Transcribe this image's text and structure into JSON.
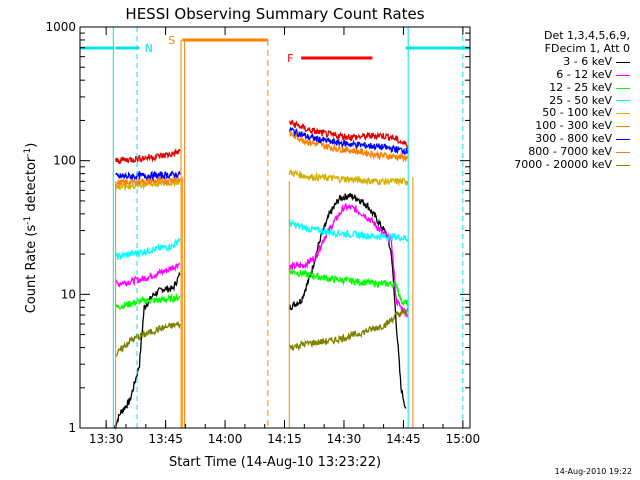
{
  "chart_data": {
    "type": "line",
    "title": "HESSI Observing Summary Count Rates",
    "xlabel": "Start Time (14-Aug-10 13:23:22)",
    "ylabel_parts": [
      "Count Rate (s",
      "-1",
      " detector",
      "-1",
      ")"
    ],
    "y_scale": "log",
    "ylim": [
      1,
      1000
    ],
    "y_ticks": [
      {
        "v": 1,
        "label": "1"
      },
      {
        "v": 10,
        "label": "10"
      },
      {
        "v": 100,
        "label": "100"
      },
      {
        "v": 1000,
        "label": "1000"
      }
    ],
    "xlim": [
      13.39,
      15.03
    ],
    "x_ticks": [
      {
        "v": 13.5,
        "label": "13:30"
      },
      {
        "v": 13.75,
        "label": "13:45"
      },
      {
        "v": 14.0,
        "label": "14:00"
      },
      {
        "v": 14.25,
        "label": "14:15"
      },
      {
        "v": 14.5,
        "label": "14:30"
      },
      {
        "v": 14.75,
        "label": "14:45"
      },
      {
        "v": 15.0,
        "label": "15:00"
      }
    ],
    "legend_header": [
      "Det 1,3,4,5,6,9,",
      "FDecim 1, Att 0"
    ],
    "series": [
      {
        "name": "3 - 6 keV",
        "color": "#000000",
        "segments": [
          [
            [
              13.535,
              1
            ],
            [
              13.56,
              1.3
            ],
            [
              13.6,
              1.6
            ],
            [
              13.64,
              3
            ],
            [
              13.66,
              8
            ],
            [
              13.7,
              10
            ],
            [
              13.74,
              11
            ],
            [
              13.78,
              11
            ],
            [
              13.81,
              14
            ]
          ],
          [
            [
              14.27,
              8
            ],
            [
              14.32,
              9
            ],
            [
              14.36,
              14
            ],
            [
              14.4,
              26
            ],
            [
              14.44,
              40
            ],
            [
              14.48,
              52
            ],
            [
              14.52,
              55
            ],
            [
              14.56,
              52
            ],
            [
              14.6,
              46
            ],
            [
              14.64,
              36
            ],
            [
              14.68,
              28
            ],
            [
              14.7,
              20
            ],
            [
              14.72,
              6
            ],
            [
              14.74,
              2
            ],
            [
              14.76,
              1.4
            ]
          ]
        ]
      },
      {
        "name": "6 - 12 keV",
        "color": "#ff00ff",
        "segments": [
          [
            [
              13.54,
              12
            ],
            [
              13.6,
              12.5
            ],
            [
              13.65,
              13
            ],
            [
              13.7,
              14
            ],
            [
              13.75,
              15
            ],
            [
              13.81,
              17
            ]
          ],
          [
            [
              14.27,
              16
            ],
            [
              14.33,
              16.5
            ],
            [
              14.38,
              19
            ],
            [
              14.42,
              27
            ],
            [
              14.46,
              35
            ],
            [
              14.5,
              45
            ],
            [
              14.54,
              44
            ],
            [
              14.58,
              40
            ],
            [
              14.62,
              35
            ],
            [
              14.66,
              29
            ],
            [
              14.7,
              25
            ],
            [
              14.72,
              9
            ],
            [
              14.74,
              8
            ],
            [
              14.77,
              7
            ]
          ]
        ]
      },
      {
        "name": "12 - 25 keV",
        "color": "#00ff00",
        "segments": [
          [
            [
              13.54,
              8
            ],
            [
              13.6,
              8.5
            ],
            [
              13.66,
              9
            ],
            [
              13.72,
              9
            ],
            [
              13.81,
              9.5
            ]
          ],
          [
            [
              14.27,
              15
            ],
            [
              14.35,
              14
            ],
            [
              14.45,
              13
            ],
            [
              14.55,
              12.5
            ],
            [
              14.65,
              12
            ],
            [
              14.72,
              12
            ],
            [
              14.74,
              9
            ],
            [
              14.77,
              8.5
            ]
          ]
        ]
      },
      {
        "name": "25 - 50 keV",
        "color": "#00ffff",
        "segments": [
          [
            [
              13.54,
              19
            ],
            [
              13.6,
              20
            ],
            [
              13.66,
              21
            ],
            [
              13.72,
              22
            ],
            [
              13.78,
              23
            ],
            [
              13.81,
              26
            ]
          ],
          [
            [
              14.27,
              34
            ],
            [
              14.35,
              31
            ],
            [
              14.45,
              29
            ],
            [
              14.55,
              28
            ],
            [
              14.65,
              27
            ],
            [
              14.72,
              27
            ],
            [
              14.77,
              26
            ]
          ]
        ]
      },
      {
        "name": "50 - 100 keV",
        "color": "#d4b000",
        "segments": [
          [
            [
              13.54,
              63
            ],
            [
              13.65,
              66
            ],
            [
              13.75,
              68
            ],
            [
              13.81,
              70
            ]
          ],
          [
            [
              14.27,
              82
            ],
            [
              14.35,
              76
            ],
            [
              14.45,
              74
            ],
            [
              14.55,
              72
            ],
            [
              14.65,
              70
            ],
            [
              14.77,
              70
            ]
          ]
        ]
      },
      {
        "name": "100 - 300 keV",
        "color": "#ff8000",
        "segments": [
          [
            [
              13.54,
              68
            ],
            [
              13.65,
              70
            ],
            [
              13.75,
              71
            ],
            [
              13.81,
              73
            ]
          ],
          [
            [
              14.27,
              160
            ],
            [
              14.35,
              138
            ],
            [
              14.45,
              125
            ],
            [
              14.55,
              118
            ],
            [
              14.65,
              110
            ],
            [
              14.77,
              105
            ]
          ]
        ]
      },
      {
        "name": "300 - 800 keV",
        "color": "#0000ff",
        "segments": [
          [
            [
              13.54,
              76
            ],
            [
              13.65,
              77
            ],
            [
              13.75,
              78
            ],
            [
              13.81,
              79
            ]
          ],
          [
            [
              14.27,
              172
            ],
            [
              14.35,
              150
            ],
            [
              14.45,
              138
            ],
            [
              14.55,
              132
            ],
            [
              14.65,
              127
            ],
            [
              14.77,
              118
            ]
          ]
        ]
      },
      {
        "name": "800 - 7000 keV",
        "color": "#e08a00",
        "segments": []
      },
      {
        "name": "7000 - 20000 keV",
        "color": "#808000",
        "segments": [
          [
            [
              13.54,
              3.5
            ],
            [
              13.6,
              4.5
            ],
            [
              13.66,
              5
            ],
            [
              13.72,
              5.5
            ],
            [
              13.81,
              6
            ]
          ],
          [
            [
              14.27,
              4
            ],
            [
              14.35,
              4.3
            ],
            [
              14.45,
              4.5
            ],
            [
              14.55,
              5
            ],
            [
              14.62,
              5.5
            ],
            [
              14.68,
              6
            ],
            [
              14.72,
              7
            ],
            [
              14.77,
              7.5
            ]
          ]
        ]
      },
      {
        "name": "",
        "color": "#e00000",
        "segments": [
          [
            [
              13.54,
              100
            ],
            [
              13.6,
              102
            ],
            [
              13.66,
              105
            ],
            [
              13.72,
              108
            ],
            [
              13.78,
              112
            ],
            [
              13.81,
              118
            ]
          ],
          [
            [
              14.27,
              195
            ],
            [
              14.35,
              170
            ],
            [
              14.45,
              155
            ],
            [
              14.55,
              150
            ],
            [
              14.65,
              155
            ],
            [
              14.7,
              150
            ],
            [
              14.77,
              130
            ]
          ]
        ]
      }
    ],
    "annotations": [
      {
        "label": "N",
        "color": "#00e5e5",
        "bars": [
          [
            13.39,
            13.53
          ],
          [
            13.64,
            13.63
          ],
          [
            14.76,
            15.03
          ]
        ]
      },
      {
        "label": "S",
        "color": "#ff8000",
        "bar": [
          13.82,
          14.18
        ]
      },
      {
        "label": "F",
        "color": "#ff0000",
        "bar": [
          14.32,
          14.62
        ]
      }
    ],
    "grid": false,
    "legend_position": "right"
  },
  "datestamp": "14-Aug-2010 19:22"
}
